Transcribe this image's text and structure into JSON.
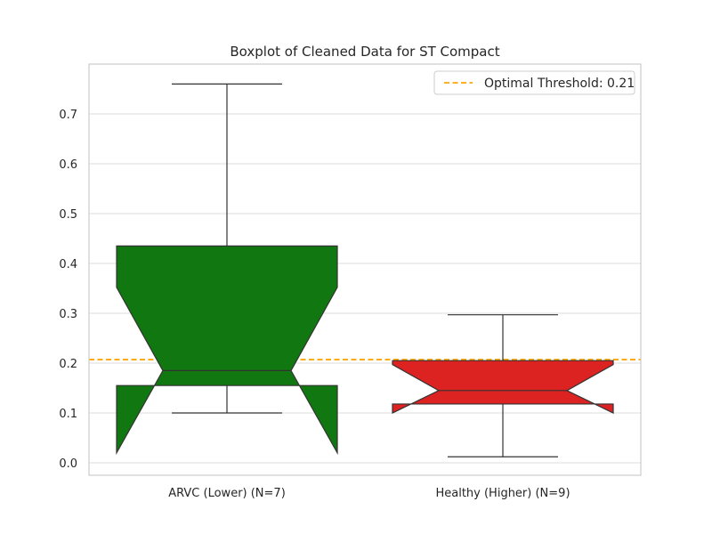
{
  "chart_data": {
    "type": "boxplot",
    "title": "Boxplot of Cleaned Data for ST Compact",
    "xlabel": "",
    "ylabel": "",
    "ylim": [
      -0.025,
      0.8
    ],
    "yticks": [
      0.0,
      0.1,
      0.2,
      0.3,
      0.4,
      0.5,
      0.6,
      0.7
    ],
    "ytick_labels": [
      "0.0",
      "0.1",
      "0.2",
      "0.3",
      "0.4",
      "0.5",
      "0.6",
      "0.7"
    ],
    "grid": true,
    "notched": true,
    "categories": [
      "ARVC (Lower) (N=7)",
      "Healthy (Higher) (N=9)"
    ],
    "boxes": [
      {
        "category": "ARVC (Lower) (N=7)",
        "color": "#117711",
        "whisker_low": 0.1,
        "q1": 0.155,
        "median": 0.185,
        "q3": 0.435,
        "whisker_high": 0.76,
        "notch_low": 0.02,
        "notch_high": 0.352
      },
      {
        "category": "Healthy (Higher) (N=9)",
        "color": "#dd2222",
        "whisker_low": 0.012,
        "q1": 0.118,
        "median": 0.145,
        "q3": 0.205,
        "whisker_high": 0.297,
        "notch_low": 0.1,
        "notch_high": 0.197
      }
    ],
    "threshold": {
      "value": 0.207,
      "color": "#ffa500",
      "label": "Optimal Threshold: 0.21"
    },
    "legend_position": "top-right"
  }
}
